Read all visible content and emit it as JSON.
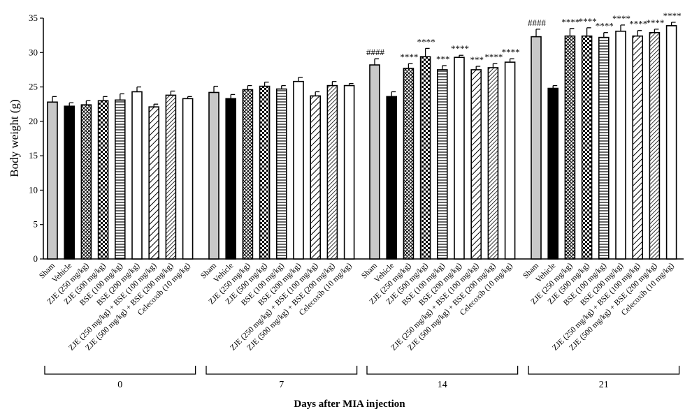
{
  "chart_data": {
    "type": "bar",
    "ylabel": "Body weight (g)",
    "xlabel": "Days after MIA injection",
    "ylim": [
      0,
      35
    ],
    "yticks": [
      0,
      5,
      10,
      15,
      20,
      25,
      30,
      35
    ],
    "grid": false,
    "legend": "none",
    "categories": [
      "Sham",
      "Vehicle",
      "ZJE (250 mg/kg)",
      "ZJE (500 mg/kg)",
      "BSE (100 mg/kg)",
      "BSE (200 mg/kg)",
      "ZJE (250 mg/kg) + BSE (100 mg/kg)",
      "ZJE (500 mg/kg) + BSE (200 mg/kg)",
      "Celecoxib (10 mg/kg)"
    ],
    "fills": [
      "gray",
      "black",
      "crosshatch",
      "checker",
      "horizontal-lines",
      "white",
      "diagonal-lines",
      "dense-diagonal-lines",
      "white"
    ],
    "groups": [
      {
        "label": "0",
        "values": [
          22.8,
          22.2,
          22.4,
          23.0,
          23.1,
          24.3,
          22.1,
          23.8,
          23.3
        ],
        "errors": [
          0.8,
          0.5,
          0.6,
          0.6,
          0.9,
          0.7,
          0.4,
          0.6,
          0.3
        ],
        "sig": [
          "",
          "",
          "",
          "",
          "",
          "",
          "",
          "",
          ""
        ]
      },
      {
        "label": "7",
        "values": [
          24.2,
          23.3,
          24.6,
          25.1,
          24.7,
          25.8,
          23.7,
          25.2,
          25.2
        ],
        "errors": [
          0.9,
          0.6,
          0.6,
          0.6,
          0.5,
          0.6,
          0.6,
          0.6,
          0.3
        ],
        "sig": [
          "",
          "",
          "",
          "",
          "",
          "",
          "",
          "",
          ""
        ]
      },
      {
        "label": "14",
        "values": [
          28.2,
          23.6,
          27.7,
          29.4,
          27.5,
          29.3,
          27.5,
          27.8,
          28.6
        ],
        "errors": [
          0.9,
          0.7,
          0.7,
          1.2,
          0.6,
          0.3,
          0.5,
          0.6,
          0.5
        ],
        "sig": [
          "####",
          "",
          "****",
          "****",
          "***",
          "****",
          "***",
          "****",
          "****"
        ]
      },
      {
        "label": "21",
        "values": [
          32.3,
          24.8,
          32.4,
          32.4,
          32.2,
          33.1,
          32.4,
          32.9,
          33.9
        ],
        "errors": [
          1.1,
          0.4,
          1.1,
          1.2,
          0.7,
          0.9,
          0.8,
          0.5,
          0.5
        ],
        "sig": [
          "####",
          "",
          "****",
          "****",
          "****",
          "****",
          "****",
          "****",
          "****"
        ]
      }
    ]
  }
}
